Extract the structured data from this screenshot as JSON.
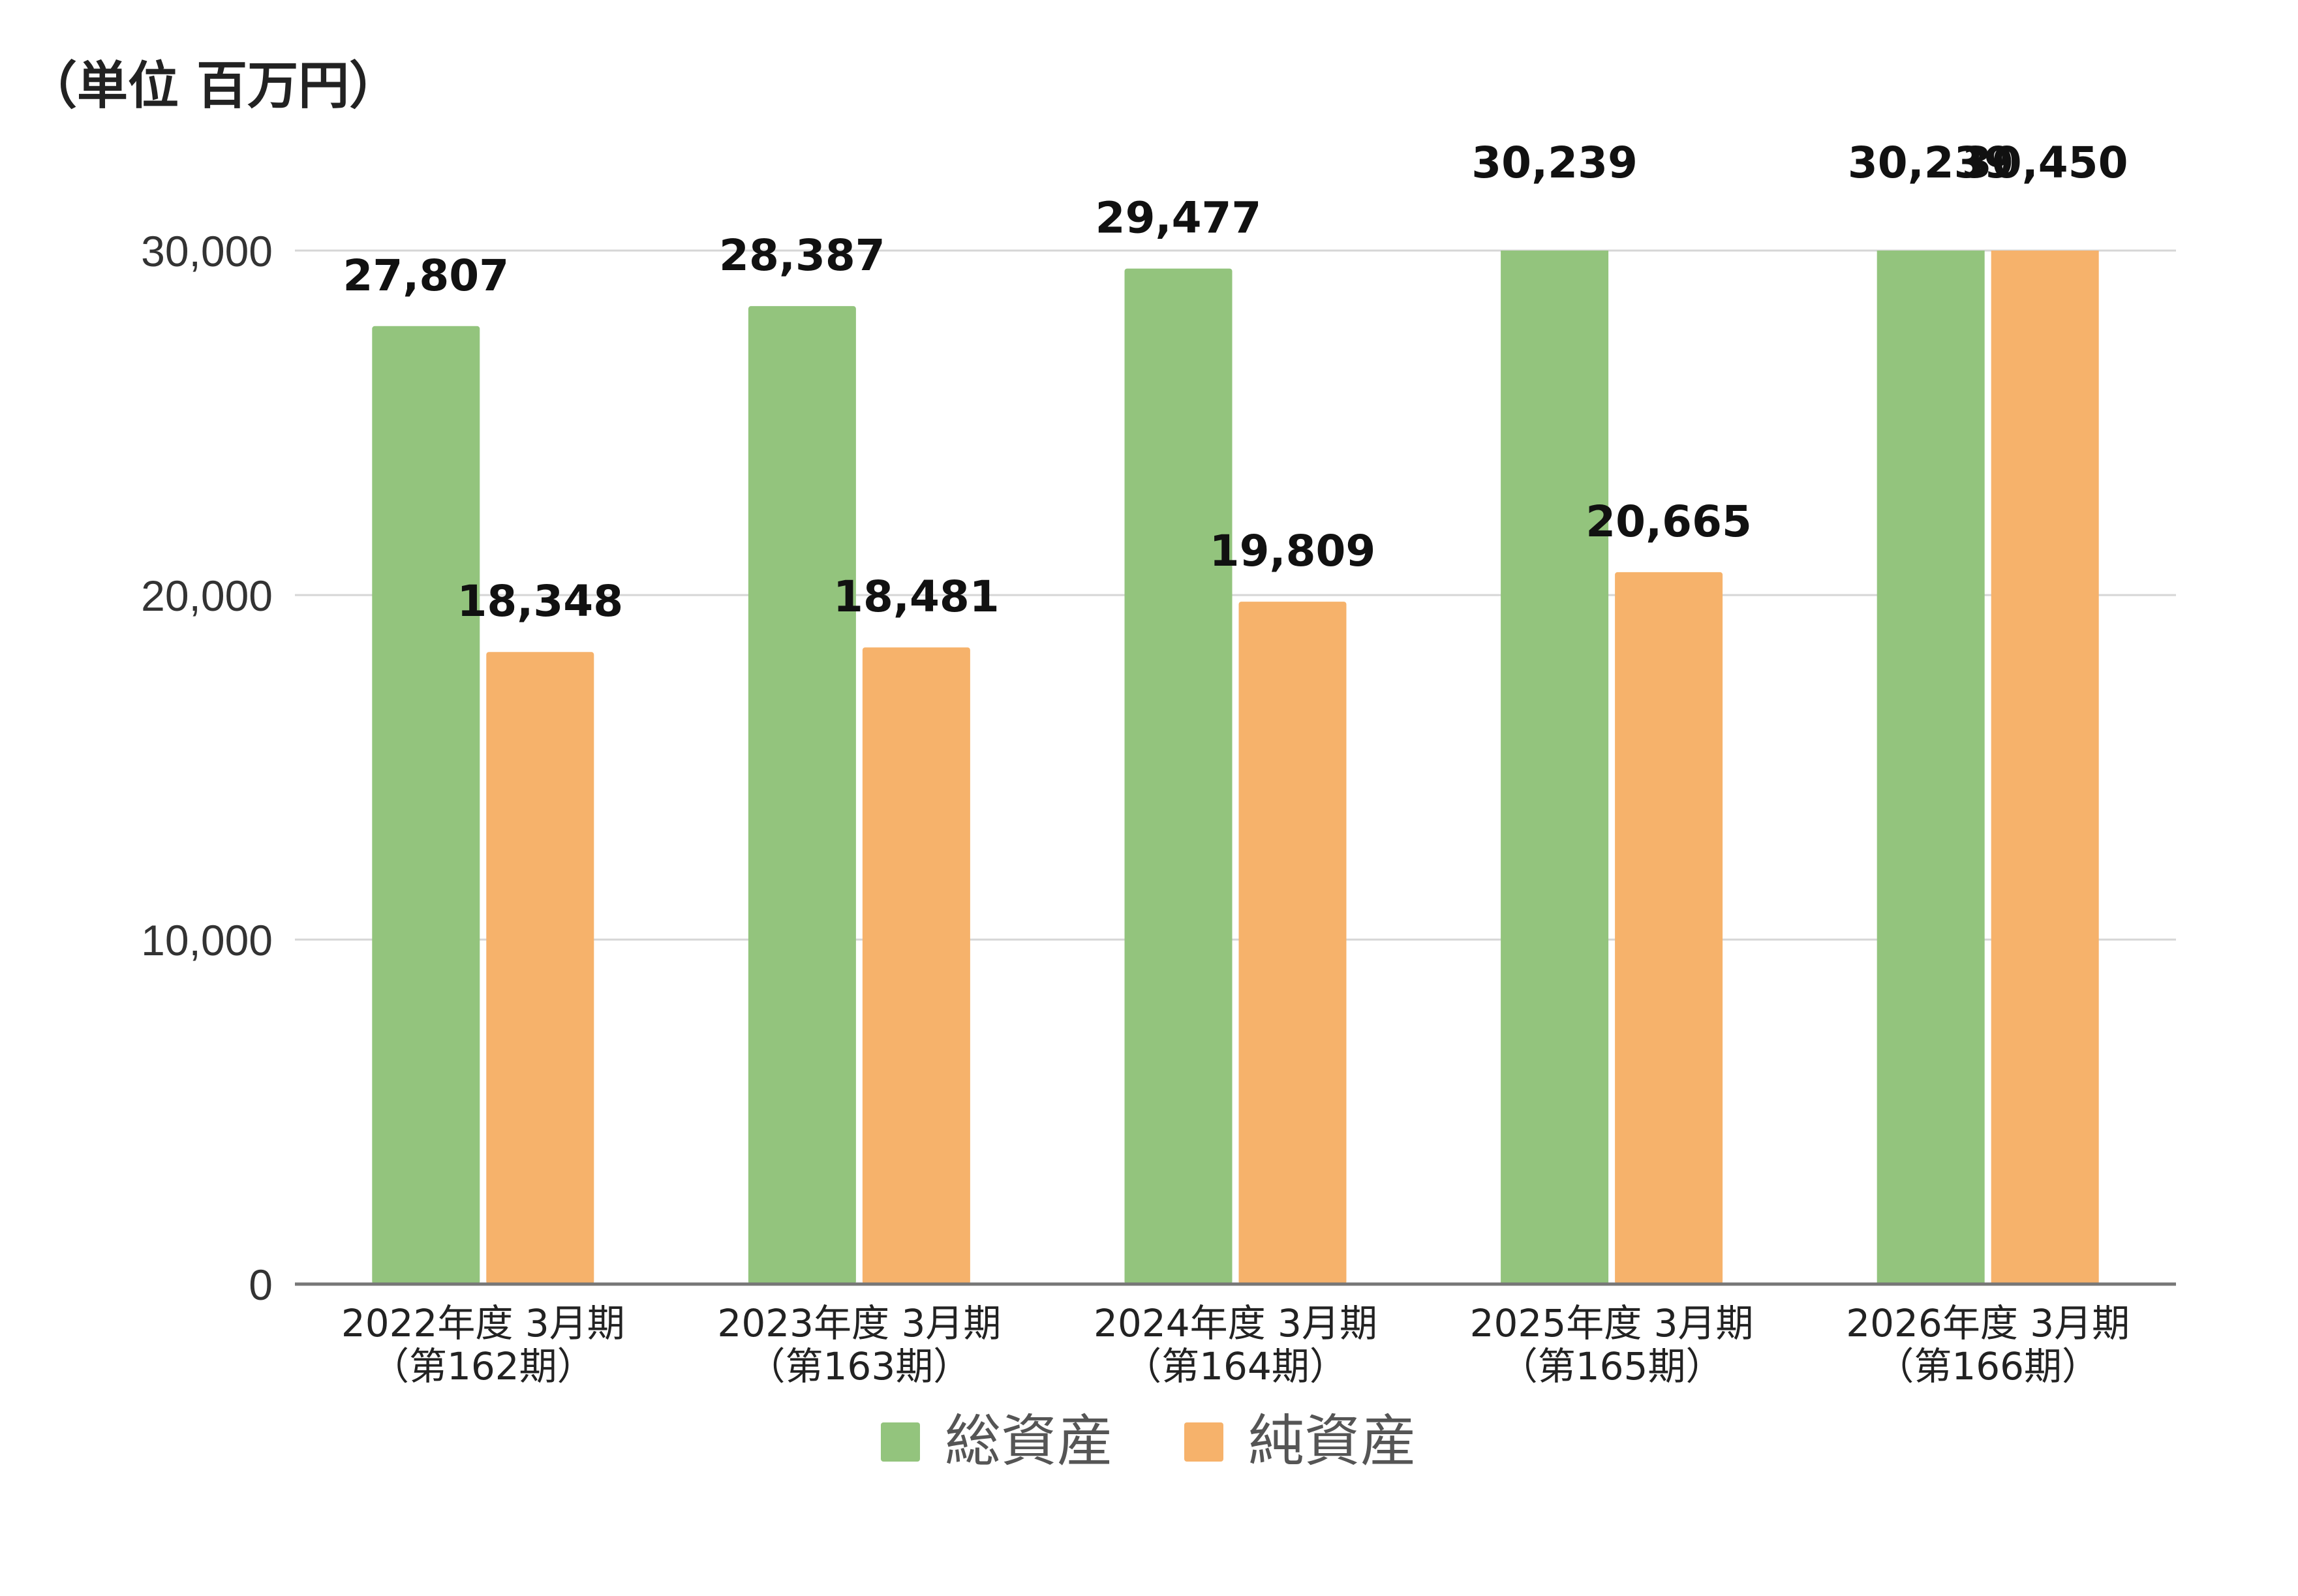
{
  "unit_label": "（単位 百万円）",
  "chart_data": {
    "type": "bar",
    "categories": [
      [
        "2022年度 3月期",
        "（第162期）"
      ],
      [
        "2023年度 3月期",
        "（第163期）"
      ],
      [
        "2024年度 3月期",
        "（第164期）"
      ],
      [
        "2025年度 3月期",
        "（第165期）"
      ],
      [
        "2026年度 3月期",
        "（第166期）"
      ]
    ],
    "series": [
      {
        "name": "総資産",
        "color": "#93c47d",
        "values": [
          27807,
          28387,
          29477,
          30239,
          30239
        ],
        "labels": [
          "27,807",
          "28,387",
          "29,477",
          "30,239",
          "30,239"
        ]
      },
      {
        "name": "純資産",
        "color": "#f6b26b",
        "values": [
          18348,
          18481,
          19809,
          20665,
          30450
        ],
        "labels": [
          "18,348",
          "18,481",
          "19,809",
          "20,665",
          "30,450"
        ]
      }
    ],
    "ylim": [
      0,
      30000
    ],
    "yticks": [
      0,
      10000,
      20000,
      30000
    ],
    "ytick_labels": [
      "0",
      "10,000",
      "20,000",
      "30,000"
    ],
    "grid": true,
    "legend_position": "bottom"
  }
}
